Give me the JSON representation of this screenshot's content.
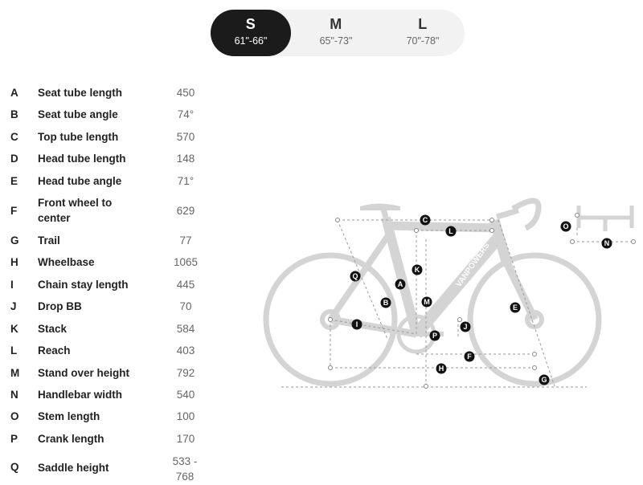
{
  "sizes": [
    {
      "label": "S",
      "range": "61\"-66\"",
      "active": true
    },
    {
      "label": "M",
      "range": "65\"-73\"",
      "active": false
    },
    {
      "label": "L",
      "range": "70\"-78\"",
      "active": false
    }
  ],
  "geometry": [
    {
      "key": "A",
      "name": "Seat tube length",
      "value": "450"
    },
    {
      "key": "B",
      "name": "Seat tube angle",
      "value": "74°"
    },
    {
      "key": "C",
      "name": "Top tube length",
      "value": "570"
    },
    {
      "key": "D",
      "name": "Head tube length",
      "value": "148"
    },
    {
      "key": "E",
      "name": "Head tube angle",
      "value": "71°"
    },
    {
      "key": "F",
      "name": "Front wheel to center",
      "value": "629"
    },
    {
      "key": "G",
      "name": "Trail",
      "value": "77"
    },
    {
      "key": "H",
      "name": "Wheelbase",
      "value": "1065"
    },
    {
      "key": "I",
      "name": "Chain stay length",
      "value": "445"
    },
    {
      "key": "J",
      "name": "Drop BB",
      "value": "70"
    },
    {
      "key": "K",
      "name": "Stack",
      "value": "584"
    },
    {
      "key": "L",
      "name": "Reach",
      "value": "403"
    },
    {
      "key": "M",
      "name": "Stand over height",
      "value": "792"
    },
    {
      "key": "N",
      "name": "Handlebar width",
      "value": "540"
    },
    {
      "key": "O",
      "name": "Stem length",
      "value": "100"
    },
    {
      "key": "P",
      "name": "Crank length",
      "value": "170"
    },
    {
      "key": "Q",
      "name": "Saddle height",
      "value": "533 - 768"
    }
  ],
  "diagram": {
    "brand_text": "VANPOWERS",
    "markers": [
      "A",
      "B",
      "C",
      "E",
      "F",
      "G",
      "H",
      "I",
      "J",
      "K",
      "L",
      "M",
      "N",
      "O",
      "P",
      "Q"
    ],
    "frame_color": "#d4d4d4",
    "line_color": "#9a9a9a",
    "marker_color": "#111111"
  }
}
